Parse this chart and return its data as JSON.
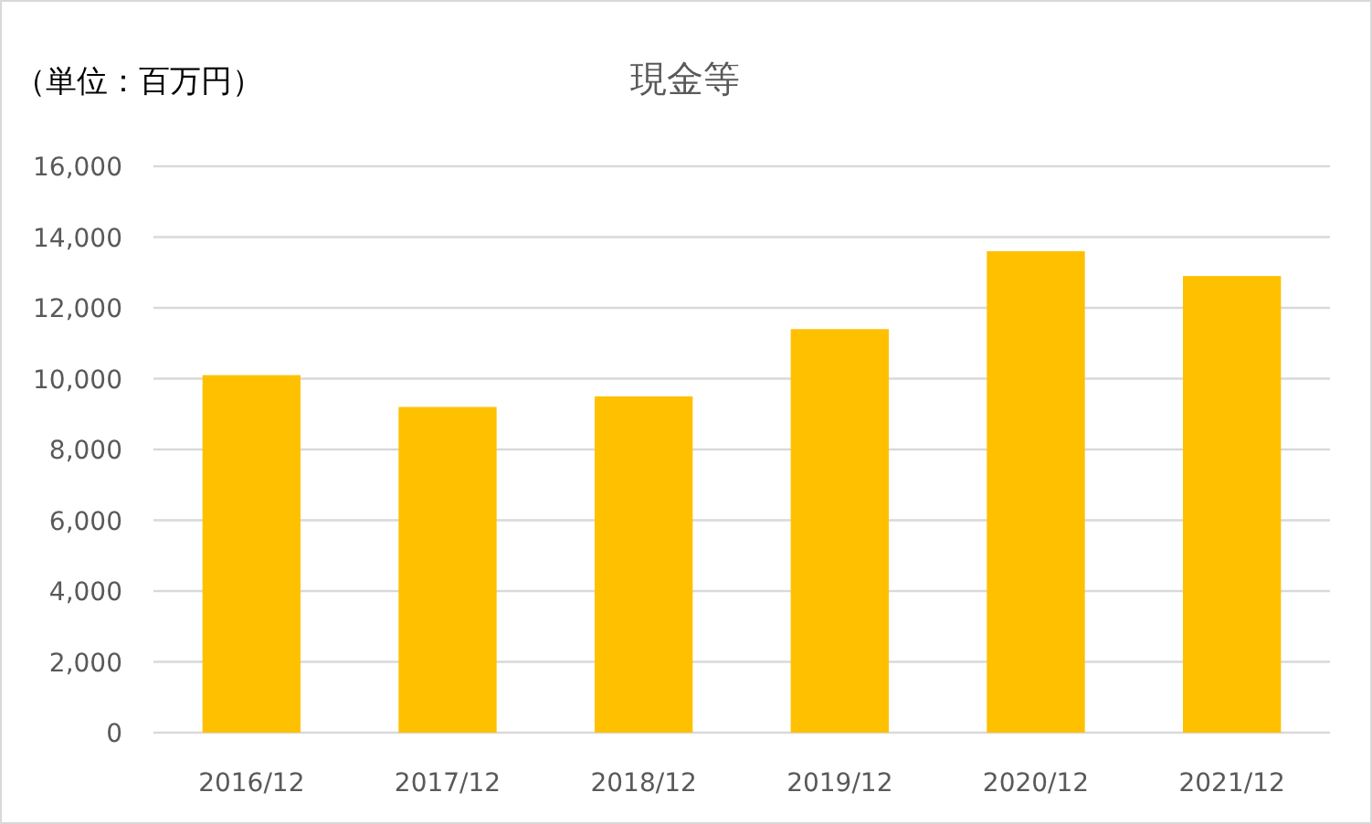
{
  "chart_data": {
    "type": "bar",
    "title": "現金等",
    "annotations": [
      "（単位：百万円）"
    ],
    "categories": [
      "2016/12",
      "2017/12",
      "2018/12",
      "2019/12",
      "2020/12",
      "2021/12"
    ],
    "values": [
      10100,
      9200,
      9500,
      11400,
      13600,
      12900
    ],
    "color": "#ffc000",
    "ylim": [
      0,
      16000
    ],
    "yticks": [
      0,
      {
        "value": 2000,
        "label": "2,000"
      },
      {
        "value": 4000,
        "label": "4,000"
      },
      {
        "value": 6000,
        "label": "6,000"
      },
      {
        "value": 8000,
        "label": "8,000"
      },
      {
        "value": 10000,
        "label": "10,000"
      },
      {
        "value": 12000,
        "label": "12,000"
      },
      {
        "value": 14000,
        "label": "14,000"
      },
      {
        "value": 16000,
        "label": "16,000"
      }
    ],
    "grid": "y"
  }
}
